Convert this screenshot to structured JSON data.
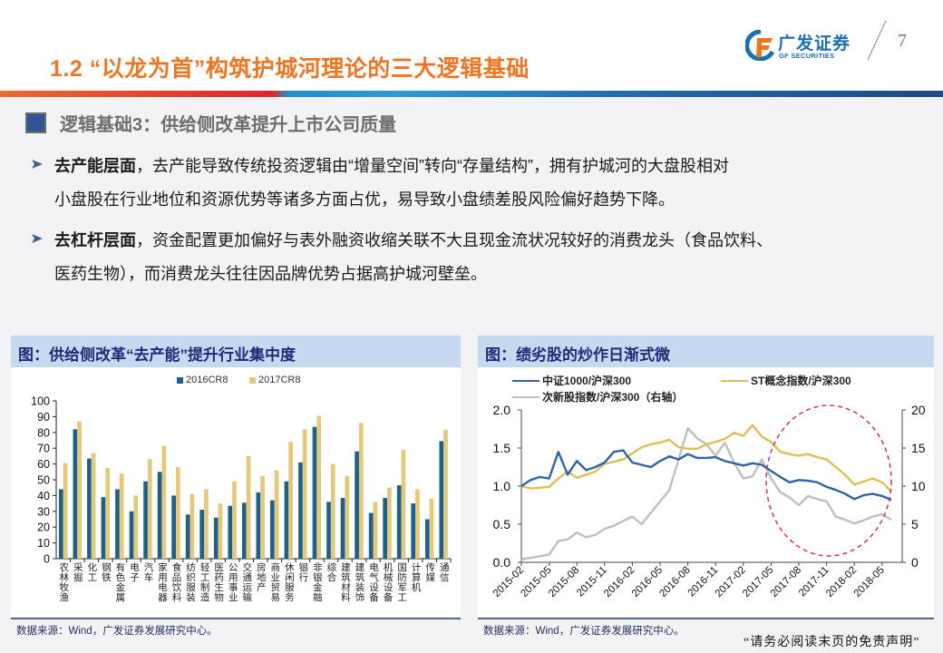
{
  "header": {
    "title": "1.2 “以龙为首”构筑护城河理论的三大逻辑基础",
    "logo_cn": "广发证券",
    "logo_en": "GF SECURITIES",
    "page_number": "7"
  },
  "section": {
    "title": "逻辑基础3：供给侧改革提升上市公司质量"
  },
  "bullets": [
    {
      "keyword": "去产能层面",
      "line1": "，去产能导致传统投资逻辑由“增量空间”转向“存量结构”，拥有护城河的大盘股相对",
      "line2": "小盘股在行业地位和资源优势等诸多方面占优，易导致小盘绩差股风险偏好趋势下降。"
    },
    {
      "keyword": "去杠杆层面",
      "line1": "，资金配置更加偏好与表外融资收缩关联不大且现金流状况较好的消费龙头（食品饮料、",
      "line2": "医药生物），而消费龙头往往因品牌优势占据高护城河壁垒。"
    }
  ],
  "left_panel": {
    "title": "图：供给侧改革“去产能”提升行业集中度",
    "source": "数据来源：Wind，广发证券发展研究中心。"
  },
  "right_panel": {
    "title": "图：绩劣股的炒作日渐式微",
    "source": "数据来源：Wind，广发证券发展研究中心。"
  },
  "footer": {
    "disclaimer": "“请务必阅读末页的免责声明”"
  },
  "colors": {
    "accent_orange": "#ee7623",
    "bar_2016": "#1f5f8b",
    "bar_2017": "#e4c97a",
    "line_csi1000": "#2e64a8",
    "line_st": "#e0bf55",
    "line_ipo": "#bfbfbf",
    "ellipse": "#d42a3a"
  },
  "chart_data": [
    {
      "type": "bar",
      "title": "图：供给侧改革“去产能”提升行业集中度",
      "xlabel": "",
      "ylabel": "",
      "ylim": [
        0,
        100
      ],
      "yticks": [
        "0",
        "10",
        "20",
        "30",
        "40",
        "50",
        "60",
        "70",
        "80",
        "90",
        "100"
      ],
      "legend_position": "top",
      "grid": false,
      "categories": [
        "农林牧渔",
        "采掘",
        "化工",
        "钢铁",
        "有色金属",
        "电子",
        "汽车",
        "家用电器",
        "食品饮料",
        "纺织服装",
        "轻工制造",
        "医药生物",
        "公用事业",
        "交通运输",
        "房地产",
        "商业贸易",
        "休闲服务",
        "银行",
        "非银金融",
        "综合",
        "建筑材料",
        "建筑装饰",
        "电气设备",
        "机械设备",
        "国防军工",
        "计算机",
        "传媒",
        "通信"
      ],
      "series": [
        {
          "name": "2016CR8",
          "values": [
            44,
            82,
            63.5,
            39,
            44,
            30,
            49,
            55,
            40,
            28,
            31,
            26,
            33.5,
            35.5,
            42,
            37,
            49,
            61,
            83.5,
            36,
            38.5,
            68,
            29,
            38.5,
            46.5,
            35,
            25,
            74.5
          ]
        },
        {
          "name": "2017CR8",
          "values": [
            60.5,
            87,
            67,
            57.5,
            54,
            40,
            63,
            71.5,
            58,
            41,
            44,
            35,
            49,
            65,
            52.5,
            56,
            74,
            82,
            90.5,
            60,
            52.5,
            86,
            36,
            45,
            69,
            44,
            38,
            81.5
          ]
        }
      ]
    },
    {
      "type": "line",
      "title": "图：绩劣股的炒作日渐式微",
      "xlabel": "",
      "ylabel": "",
      "ylim": [
        0,
        2.0
      ],
      "y2lim": [
        0,
        20
      ],
      "yticks": [
        "0.0",
        "0.5",
        "1.0",
        "1.5",
        "2.0"
      ],
      "y2ticks": [
        "0",
        "5",
        "10",
        "15",
        "20"
      ],
      "x_tick_labels": [
        "2015-02",
        "2015-05",
        "2015-08",
        "2015-11",
        "2016-02",
        "2016-05",
        "2016-08",
        "2016-11",
        "2017-02",
        "2017-05",
        "2017-08",
        "2017-11",
        "2018-02",
        "2018-05"
      ],
      "x": [
        "2015-02",
        "2015-03",
        "2015-04",
        "2015-05",
        "2015-06",
        "2015-07",
        "2015-08",
        "2015-09",
        "2015-10",
        "2015-11",
        "2015-12",
        "2016-01",
        "2016-02",
        "2016-03",
        "2016-04",
        "2016-05",
        "2016-06",
        "2016-07",
        "2016-08",
        "2016-09",
        "2016-10",
        "2016-11",
        "2016-12",
        "2017-01",
        "2017-02",
        "2017-03",
        "2017-04",
        "2017-05",
        "2017-06",
        "2017-07",
        "2017-08",
        "2017-09",
        "2017-10",
        "2017-11",
        "2017-12",
        "2018-01",
        "2018-02",
        "2018-03",
        "2018-04",
        "2018-05",
        "2018-06"
      ],
      "legend_position": "top",
      "grid": false,
      "series": [
        {
          "name": "中证1000/沪深300",
          "axis": "left",
          "values": [
            1.0,
            1.08,
            1.12,
            1.1,
            1.45,
            1.15,
            1.33,
            1.21,
            1.25,
            1.31,
            1.45,
            1.47,
            1.31,
            1.28,
            1.25,
            1.33,
            1.39,
            1.35,
            1.42,
            1.37,
            1.37,
            1.38,
            1.33,
            1.3,
            1.27,
            1.3,
            1.28,
            1.2,
            1.12,
            1.05,
            1.08,
            1.07,
            1.05,
            0.99,
            0.95,
            0.9,
            0.83,
            0.88,
            0.9,
            0.87,
            0.82
          ]
        },
        {
          "name": "ST概念指数/沪深300",
          "axis": "left",
          "values": [
            1.0,
            0.97,
            0.98,
            0.99,
            1.1,
            1.19,
            1.11,
            1.15,
            1.19,
            1.29,
            1.32,
            1.35,
            1.43,
            1.51,
            1.55,
            1.57,
            1.61,
            1.51,
            1.49,
            1.49,
            1.55,
            1.58,
            1.62,
            1.7,
            1.66,
            1.8,
            1.65,
            1.58,
            1.45,
            1.42,
            1.4,
            1.42,
            1.38,
            1.35,
            1.25,
            1.15,
            1.02,
            1.06,
            1.1,
            1.05,
            0.93
          ]
        },
        {
          "name": "次新股指数/沪深300（右轴）",
          "axis": "right",
          "values": [
            0.4,
            0.6,
            0.8,
            1.0,
            2.8,
            3.0,
            3.9,
            3.3,
            3.6,
            4.4,
            4.8,
            5.4,
            6.0,
            5.0,
            6.5,
            8.0,
            9.5,
            13.5,
            17.6,
            16.3,
            15.5,
            14.0,
            15.7,
            13.1,
            11.0,
            11.3,
            13.5,
            11.0,
            9.2,
            8.5,
            7.5,
            8.7,
            8.3,
            8.0,
            6.0,
            5.6,
            5.1,
            5.5,
            6.0,
            6.3,
            5.6
          ]
        }
      ],
      "annotations": [
        {
          "type": "dashed-ellipse",
          "covers": "2017-05 to 2018-06",
          "note": "highlighted decline region"
        }
      ]
    }
  ]
}
